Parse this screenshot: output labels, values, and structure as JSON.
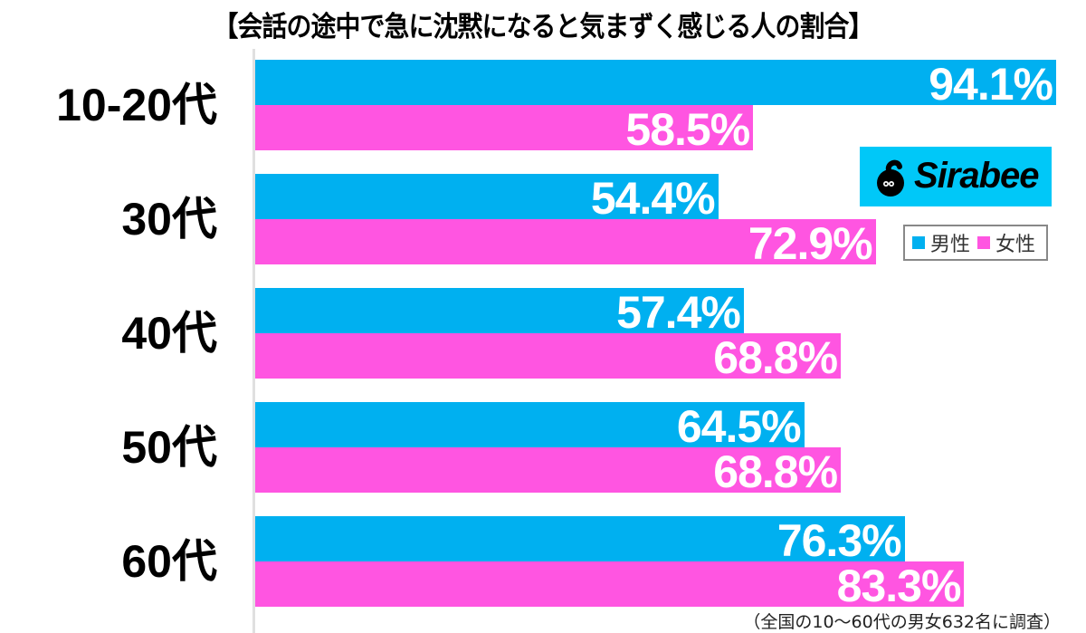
{
  "title": "【会話の途中で急に沈黙になると気まずく感じる人の割合】",
  "legend": {
    "male": "男性",
    "female": "女性"
  },
  "logo": {
    "text": "Sirabee"
  },
  "colors": {
    "male": "#00b0f0",
    "female": "#ff55e1",
    "logo_bg": "#00c8f8"
  },
  "note": "（全国の10〜60代の男女632名に調査）",
  "rows": [
    {
      "label": "10-20代",
      "male": "94.1%",
      "female": "58.5%"
    },
    {
      "label": "30代",
      "male": "54.4%",
      "female": "72.9%"
    },
    {
      "label": "40代",
      "male": "57.4%",
      "female": "68.8%"
    },
    {
      "label": "50代",
      "male": "64.5%",
      "female": "68.8%"
    },
    {
      "label": "60代",
      "male": "76.3%",
      "female": "83.3%"
    }
  ],
  "chart_data": {
    "type": "bar",
    "orientation": "horizontal",
    "title": "【会話の途中で急に沈黙になると気まずく感じる人の割合】",
    "categories": [
      "10-20代",
      "30代",
      "40代",
      "50代",
      "60代"
    ],
    "series": [
      {
        "name": "男性",
        "color": "#00b0f0",
        "values": [
          94.1,
          54.4,
          57.4,
          64.5,
          76.3
        ]
      },
      {
        "name": "女性",
        "color": "#ff55e1",
        "values": [
          58.5,
          72.9,
          68.8,
          68.8,
          83.3
        ]
      }
    ],
    "xlabel": "",
    "ylabel": "",
    "xlim": [
      0,
      100
    ],
    "unit": "%",
    "grid": false,
    "legend_position": "right",
    "annotation": "（全国の10〜60代の男女632名に調査）"
  }
}
